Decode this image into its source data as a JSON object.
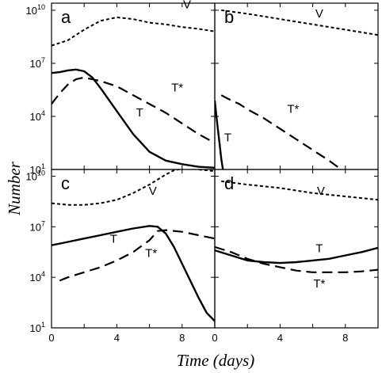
{
  "figure": {
    "ylabel": "Number",
    "xlabel": "Time (days)",
    "colors": {
      "line": "#000000",
      "background": "#ffffff"
    }
  },
  "chart_data": [
    {
      "type": "line",
      "panel": "a",
      "xlim": [
        0,
        10
      ],
      "ylim_log10": [
        1,
        10.4
      ],
      "yscale": "log",
      "yticks": [
        "10^1",
        "10^4",
        "10^7",
        "10^10"
      ],
      "xticks": [
        "0",
        "4",
        "8"
      ],
      "series": [
        {
          "name": "V",
          "style": "dotted",
          "x": [
            0,
            1,
            2,
            3,
            4,
            5,
            6,
            7,
            8,
            9,
            10
          ],
          "log10_y": [
            8.0,
            8.3,
            8.9,
            9.4,
            9.6,
            9.5,
            9.3,
            9.2,
            9.05,
            8.95,
            8.8
          ]
        },
        {
          "name": "T*",
          "style": "dashed",
          "x": [
            0,
            0.5,
            1,
            1.5,
            2,
            2.5,
            3,
            4,
            5,
            6,
            7,
            8,
            9,
            10
          ],
          "log10_y": [
            4.7,
            5.3,
            5.8,
            6.1,
            6.2,
            6.1,
            6.0,
            5.7,
            5.2,
            4.7,
            4.2,
            3.6,
            3.0,
            2.5
          ]
        },
        {
          "name": "T",
          "style": "solid",
          "x": [
            0,
            0.5,
            1,
            1.5,
            2,
            2.5,
            3,
            4,
            5,
            6,
            7,
            8,
            9,
            10
          ],
          "log10_y": [
            6.45,
            6.5,
            6.6,
            6.65,
            6.55,
            6.2,
            5.6,
            4.3,
            3.0,
            2.0,
            1.5,
            1.3,
            1.15,
            1.1
          ]
        }
      ],
      "curve_labels": [
        "V",
        "T*",
        "T"
      ]
    },
    {
      "type": "line",
      "panel": "b",
      "xlim": [
        0,
        10
      ],
      "ylim_log10": [
        1,
        10.4
      ],
      "yscale": "log",
      "series": [
        {
          "name": "V",
          "style": "dotted",
          "x": [
            0.4,
            2,
            4,
            6,
            8,
            10
          ],
          "log10_y": [
            10.0,
            9.8,
            9.5,
            9.2,
            8.9,
            8.6
          ]
        },
        {
          "name": "T*",
          "style": "dashed",
          "x": [
            0.4,
            0.8,
            1.5,
            2,
            3,
            4,
            5,
            6,
            7,
            7.6
          ],
          "log10_y": [
            5.2,
            5.0,
            4.7,
            4.4,
            3.9,
            3.3,
            2.7,
            2.1,
            1.5,
            1.1
          ]
        },
        {
          "name": "T",
          "style": "solid",
          "x": [
            0,
            0.1,
            0.2,
            0.3,
            0.4,
            0.5
          ],
          "log10_y": [
            4.9,
            4.0,
            3.2,
            2.4,
            1.6,
            1.0
          ]
        }
      ],
      "curve_labels": [
        "V",
        "T*",
        "T"
      ]
    },
    {
      "type": "line",
      "panel": "c",
      "xlim": [
        0,
        10
      ],
      "ylim_log10": [
        1,
        10.4
      ],
      "yscale": "log",
      "yticks": [
        "10^1",
        "10^4",
        "10^7",
        "10^10"
      ],
      "xticks": [
        "0",
        "4",
        "8"
      ],
      "series": [
        {
          "name": "V",
          "style": "dotted",
          "x": [
            0,
            1,
            2,
            3,
            4,
            5,
            6,
            7,
            7.5,
            8,
            8.5,
            9,
            10
          ],
          "log10_y": [
            8.4,
            8.3,
            8.3,
            8.4,
            8.6,
            9.0,
            9.5,
            10.1,
            10.35,
            10.45,
            10.45,
            10.4,
            10.3
          ]
        },
        {
          "name": "T",
          "style": "solid",
          "x": [
            0,
            1,
            2,
            3,
            4,
            5,
            6,
            6.5,
            7,
            7.5,
            8,
            8.5,
            9,
            9.5,
            10
          ],
          "log10_y": [
            5.9,
            6.1,
            6.3,
            6.5,
            6.7,
            6.9,
            7.05,
            7.0,
            6.6,
            5.8,
            4.8,
            3.8,
            2.8,
            1.9,
            1.4
          ]
        },
        {
          "name": "T*",
          "style": "dashed",
          "x": [
            0.5,
            1,
            2,
            3,
            4,
            5,
            6,
            6.5,
            7,
            8,
            9,
            10
          ],
          "log10_y": [
            3.8,
            4.0,
            4.3,
            4.6,
            5.0,
            5.5,
            6.2,
            6.75,
            6.8,
            6.7,
            6.5,
            6.3
          ]
        }
      ],
      "curve_labels": [
        "V",
        "T",
        "T*"
      ]
    },
    {
      "type": "line",
      "panel": "d",
      "xlim": [
        0,
        10
      ],
      "ylim_log10": [
        1,
        10.4
      ],
      "yscale": "log",
      "xticks": [
        "4",
        "8"
      ],
      "series": [
        {
          "name": "V",
          "style": "dotted",
          "x": [
            0.4,
            2,
            4,
            6,
            8,
            10
          ],
          "log10_y": [
            9.7,
            9.5,
            9.3,
            9.0,
            8.8,
            8.6
          ]
        },
        {
          "name": "T",
          "style": "solid",
          "x": [
            0,
            1,
            2,
            3,
            4,
            5,
            6,
            7,
            8,
            9,
            10
          ],
          "log10_y": [
            5.6,
            5.3,
            5.0,
            4.9,
            4.85,
            4.9,
            5.0,
            5.1,
            5.3,
            5.5,
            5.75
          ]
        },
        {
          "name": "T*",
          "style": "dashed",
          "x": [
            0,
            1,
            2,
            3,
            4,
            5,
            6,
            7,
            8,
            9,
            10
          ],
          "log10_y": [
            5.8,
            5.5,
            5.1,
            4.8,
            4.6,
            4.4,
            4.3,
            4.3,
            4.3,
            4.35,
            4.45
          ]
        }
      ],
      "curve_labels": [
        "V",
        "T",
        "T*"
      ]
    }
  ]
}
